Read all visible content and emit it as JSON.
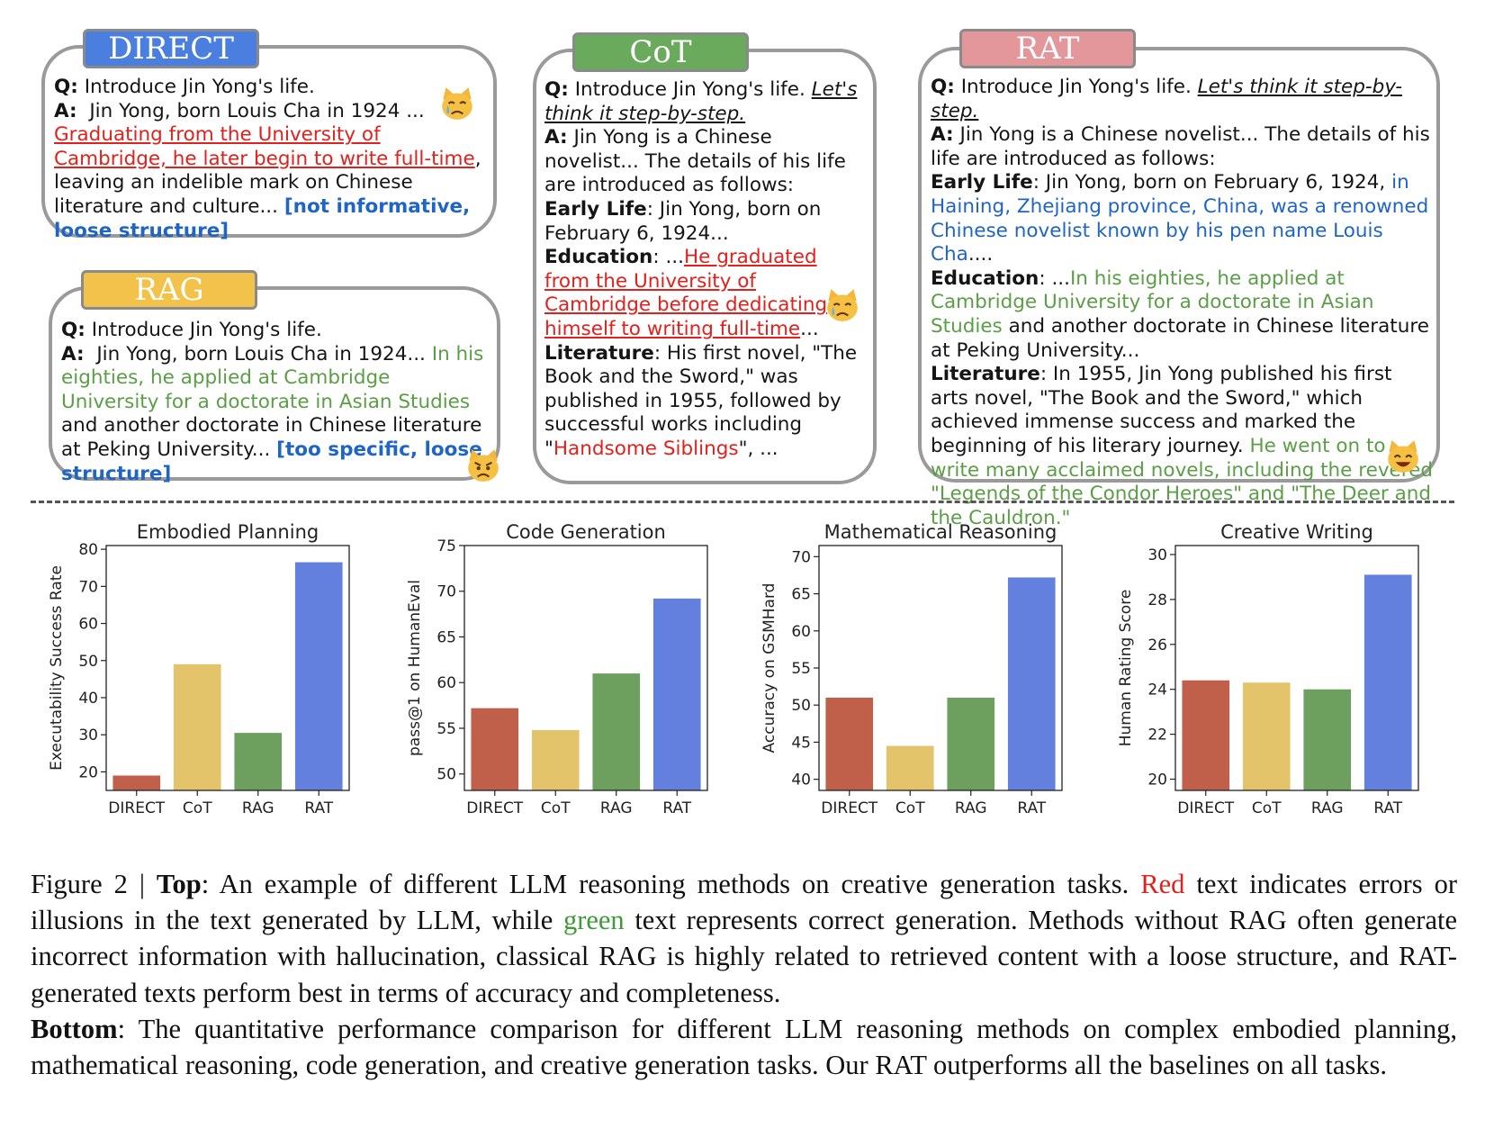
{
  "panels": {
    "direct": {
      "tab": "DIRECT",
      "q_label": "Q:",
      "question": "Introduce Jin Yong's life.",
      "a_label": "A:",
      "a1": "Jin Yong, born Louis Cha in 1924 ...",
      "a_red": "Graduating from the University of Cambridge, he later begin to write full-time",
      "a2": ", leaving an indelible mark on Chinese literature and culture...",
      "verdict": "[not informative, loose structure]"
    },
    "rag": {
      "tab": "RAG",
      "q_label": "Q:",
      "question": "Introduce Jin Yong's life.",
      "a_label": "A:",
      "a1": "Jin Yong, born Louis Cha in 1924...",
      "a_green": "In his eighties, he applied at Cambridge University for a doctorate in Asian Studies",
      "a2": "and another doctorate in Chinese literature at Peking University...",
      "verdict": "[too specific, loose structure]"
    },
    "cot": {
      "tab": "CoT",
      "q_label": "Q:",
      "question": "Introduce Jin Yong's life.",
      "prompt": "Let's think it step-by-step.",
      "a_label": "A:",
      "a1": "Jin Yong is a Chinese novelist... The details of his life are introduced as follows:",
      "early_label": "Early Life",
      "early_text": ": Jin Yong, born on February 6, 1924...",
      "edu_label": "Education",
      "edu_pre": ": ...",
      "edu_red": "He graduated from the University of Cambridge before dedicating himself to writing full-time",
      "edu_post": "...",
      "lit_label": "Literature",
      "lit_text": ": His first novel, \"The Book and the Sword,\" was published in 1955, followed by successful works including \"",
      "lit_red": "Handsome Siblings",
      "lit_post": "\", ..."
    },
    "rat": {
      "tab": "RAT",
      "q_label": "Q:",
      "question": "Introduce Jin Yong's life.",
      "prompt": "Let's think it step-by-step.",
      "a_label": "A:",
      "a1": "Jin Yong is a Chinese novelist... The details of his life are introduced as follows:",
      "early_label": "Early Life",
      "early_text": ": Jin Yong, born on February 6, 1924,",
      "early_blue": "in Haining, Zhejiang province, China, was a renowned Chinese novelist known by his pen name Louis Cha",
      "early_post": "....",
      "edu_label": "Education",
      "edu_pre": ": ...",
      "edu_green": "In his eighties, he applied at Cambridge University for a doctorate in Asian Studies",
      "edu_post": "and another doctorate in Chinese literature at Peking University...",
      "lit_label": "Literature",
      "lit_text": ": In 1955, Jin Yong published his first arts novel, \"The Book and the Sword,\" which achieved immense success and marked the beginning of his literary journey.",
      "lit_green": "He went on to write many acclaimed novels, including the revered \"Legends of the Condor Heroes\" and \"The Deer and the Cauldron.\""
    }
  },
  "emoji_names": [
    "crying-cat-icon",
    "crying-cat-icon",
    "pouting-cat-icon",
    "grinning-cat-icon"
  ],
  "colors": {
    "DIRECT": "#c0604a",
    "CoT": "#e4c46a",
    "RAG": "#6d9f5f",
    "RAT": "#6380df",
    "tab_direct": "#4a7fdf",
    "tab_cot": "#6aaa5c",
    "tab_rag": "#f2c24a",
    "tab_rat": "#e4979b"
  },
  "chart_data": [
    {
      "type": "bar",
      "title": "Embodied Planning",
      "ylabel": "Executability Success Rate",
      "categories": [
        "DIRECT",
        "CoT",
        "RAG",
        "RAT"
      ],
      "values": [
        19,
        49,
        30.5,
        76.5
      ],
      "ylim": [
        15,
        81
      ],
      "yticks": [
        20,
        30,
        40,
        50,
        60,
        70,
        80
      ]
    },
    {
      "type": "bar",
      "title": "Code Generation",
      "ylabel": "pass@1 on HumanEval",
      "categories": [
        "DIRECT",
        "CoT",
        "RAG",
        "RAT"
      ],
      "values": [
        57.2,
        54.8,
        61,
        69.2
      ],
      "ylim": [
        48.2,
        75
      ],
      "yticks": [
        50,
        55,
        60,
        65,
        70,
        75
      ]
    },
    {
      "type": "bar",
      "title": "Mathematical Reasoning",
      "ylabel": "Accuracy on GSMHard",
      "categories": [
        "DIRECT",
        "CoT",
        "RAG",
        "RAT"
      ],
      "values": [
        51,
        44.5,
        51,
        67.2
      ],
      "ylim": [
        38.5,
        71.5
      ],
      "yticks": [
        40,
        45,
        50,
        55,
        60,
        65,
        70
      ]
    },
    {
      "type": "bar",
      "title": "Creative Writing",
      "ylabel": "Human Rating Score",
      "categories": [
        "DIRECT",
        "CoT",
        "RAG",
        "RAT"
      ],
      "values": [
        24.4,
        24.3,
        24,
        29.1
      ],
      "ylim": [
        19.5,
        30.4
      ],
      "yticks": [
        20,
        22,
        24,
        26,
        28,
        30
      ]
    }
  ],
  "caption": {
    "fig_label": "Figure 2 | ",
    "top_label": "Top",
    "t1": ": An example of different LLM reasoning methods on creative generation tasks. ",
    "red_word": "Red",
    "t2": " text indicates errors or illusions in the text generated by LLM, while ",
    "green_word": "green",
    "t3": " text represents correct generation. Methods without RAG often generate incorrect information with hallucination, classical RAG is highly related to retrieved content with a loose structure, and RAT-generated texts perform best in terms of accuracy and completeness.",
    "bottom_label": "Bottom",
    "t4": ": The quantitative performance comparison for different LLM reasoning methods on complex embodied planning, mathematical reasoning, code generation, and creative generation tasks. Our RAT outperforms all the baselines on all tasks."
  }
}
